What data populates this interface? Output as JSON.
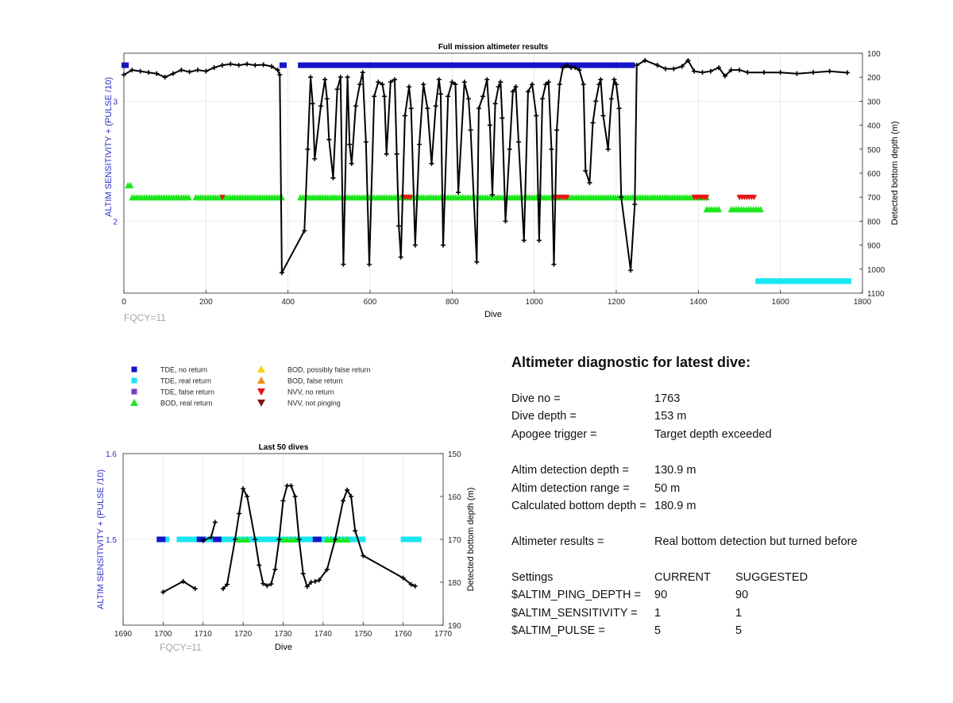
{
  "top_chart": {
    "title": "Full mission altimeter results",
    "xlabel": "Dive",
    "ylabel_left": "ALTIM SENSITIVITY + (PULSE /10)",
    "ylabel_right": "Detected bottom depth (m)",
    "fqcy": "FQCY=11",
    "x_ticks": [
      "0",
      "200",
      "400",
      "600",
      "800",
      "1000",
      "1200",
      "1400",
      "1600",
      "1800"
    ],
    "y_left_ticks": [
      "2",
      "3"
    ],
    "y_right_ticks": [
      "100",
      "200",
      "300",
      "400",
      "500",
      "600",
      "700",
      "800",
      "900",
      "1000",
      "1100"
    ]
  },
  "bottom_chart": {
    "title": "Last 50 dives",
    "xlabel": "Dive",
    "ylabel_left": "ALTIM SENSITIVITY + (PULSE /10)",
    "ylabel_right": "Detected bottom depth (m)",
    "fqcy": "FQCY=11",
    "x_ticks": [
      "1690",
      "1700",
      "1710",
      "1720",
      "1730",
      "1740",
      "1750",
      "1760",
      "1770"
    ],
    "y_left_ticks": [
      "1.6",
      "1.5"
    ],
    "y_right_ticks": [
      "150",
      "160",
      "170",
      "180",
      "190"
    ]
  },
  "legend": {
    "items": [
      {
        "label": "TDE, no return",
        "color": "#1414c8",
        "shape": "square"
      },
      {
        "label": "TDE, real return",
        "color": "#19e6f0",
        "shape": "square"
      },
      {
        "label": "TDE, false return",
        "color": "#7a3cc8",
        "shape": "square"
      },
      {
        "label": "BOD, real return",
        "color": "#1ee61e",
        "shape": "triangle-up"
      },
      {
        "label": "BOD, possibly false return",
        "color": "#f5d20a",
        "shape": "triangle-up"
      },
      {
        "label": "BOD, false return",
        "color": "#f08c14",
        "shape": "triangle-up"
      },
      {
        "label": "NVV, no return",
        "color": "#e61414",
        "shape": "triangle-down"
      },
      {
        "label": "NVV, not pinging",
        "color": "#821414",
        "shape": "triangle-down"
      }
    ]
  },
  "diagnostic": {
    "title": "Altimeter diagnostic for latest dive:",
    "dive_no_label": "Dive no =",
    "dive_no": "1763",
    "dive_depth_label": "Dive depth =",
    "dive_depth": "153 m",
    "apogee_label": "Apogee trigger =",
    "apogee": "Target depth exceeded",
    "det_depth_label": "Altim detection depth =",
    "det_depth": "130.9 m",
    "det_range_label": "Altim detection range =",
    "det_range": "50 m",
    "calc_depth_label": "Calculated bottom depth =",
    "calc_depth": "180.9 m",
    "results_label": "Altimeter results =",
    "results": "Real bottom detection but turned before",
    "settings_label": "Settings",
    "current_label": "CURRENT",
    "suggested_label": "SUGGESTED",
    "settings": [
      {
        "name": "$ALTIM_PING_DEPTH =",
        "current": "90",
        "suggested": "90"
      },
      {
        "name": "$ALTIM_SENSITIVITY =",
        "current": "1",
        "suggested": "1"
      },
      {
        "name": "$ALTIM_PULSE =",
        "current": "5",
        "suggested": "5"
      }
    ]
  },
  "chart_data": [
    {
      "type": "line",
      "title": "Full mission altimeter results",
      "xlabel": "Dive",
      "ylabel": "ALTIM SENSITIVITY + (PULSE /10)",
      "y2label": "Detected bottom depth (m)",
      "xlim": [
        0,
        1800
      ],
      "ylim_left": [
        1.4,
        3.4
      ],
      "ylim_right": [
        1100,
        100
      ],
      "grid": true,
      "bottom_depth_series": {
        "name": "Detected bottom depth (m)",
        "color": "#000000",
        "points": [
          [
            0,
            190
          ],
          [
            20,
            170
          ],
          [
            40,
            175
          ],
          [
            60,
            180
          ],
          [
            80,
            185
          ],
          [
            100,
            200
          ],
          [
            120,
            185
          ],
          [
            140,
            170
          ],
          [
            160,
            178
          ],
          [
            180,
            170
          ],
          [
            200,
            175
          ],
          [
            220,
            160
          ],
          [
            240,
            150
          ],
          [
            260,
            145
          ],
          [
            280,
            150
          ],
          [
            300,
            145
          ],
          [
            320,
            150
          ],
          [
            340,
            148
          ],
          [
            360,
            155
          ],
          [
            375,
            170
          ],
          [
            380,
            190
          ],
          [
            385,
            1015
          ],
          [
            440,
            840
          ],
          [
            448,
            500
          ],
          [
            455,
            200
          ],
          [
            460,
            310
          ],
          [
            465,
            540
          ],
          [
            480,
            320
          ],
          [
            490,
            210
          ],
          [
            495,
            290
          ],
          [
            500,
            460
          ],
          [
            510,
            620
          ],
          [
            520,
            250
          ],
          [
            528,
            200
          ],
          [
            535,
            980
          ],
          [
            545,
            200
          ],
          [
            550,
            480
          ],
          [
            555,
            560
          ],
          [
            565,
            320
          ],
          [
            575,
            230
          ],
          [
            582,
            180
          ],
          [
            590,
            470
          ],
          [
            598,
            980
          ],
          [
            610,
            280
          ],
          [
            620,
            220
          ],
          [
            630,
            230
          ],
          [
            635,
            280
          ],
          [
            640,
            520
          ],
          [
            650,
            220
          ],
          [
            660,
            210
          ],
          [
            665,
            520
          ],
          [
            670,
            820
          ],
          [
            675,
            950
          ],
          [
            685,
            360
          ],
          [
            695,
            240
          ],
          [
            700,
            330
          ],
          [
            710,
            900
          ],
          [
            720,
            480
          ],
          [
            730,
            230
          ],
          [
            740,
            330
          ],
          [
            750,
            560
          ],
          [
            760,
            320
          ],
          [
            768,
            210
          ],
          [
            772,
            270
          ],
          [
            778,
            900
          ],
          [
            790,
            280
          ],
          [
            800,
            220
          ],
          [
            808,
            230
          ],
          [
            815,
            680
          ],
          [
            830,
            220
          ],
          [
            840,
            290
          ],
          [
            845,
            420
          ],
          [
            860,
            970
          ],
          [
            865,
            330
          ],
          [
            875,
            280
          ],
          [
            885,
            210
          ],
          [
            892,
            400
          ],
          [
            898,
            690
          ],
          [
            905,
            310
          ],
          [
            913,
            240
          ],
          [
            918,
            220
          ],
          [
            922,
            370
          ],
          [
            930,
            800
          ],
          [
            940,
            500
          ],
          [
            948,
            260
          ],
          [
            955,
            240
          ],
          [
            962,
            470
          ],
          [
            975,
            880
          ],
          [
            985,
            260
          ],
          [
            995,
            230
          ],
          [
            1005,
            360
          ],
          [
            1012,
            880
          ],
          [
            1020,
            290
          ],
          [
            1028,
            230
          ],
          [
            1035,
            220
          ],
          [
            1042,
            500
          ],
          [
            1048,
            980
          ],
          [
            1055,
            420
          ],
          [
            1062,
            230
          ],
          [
            1070,
            160
          ],
          [
            1080,
            150
          ],
          [
            1090,
            160
          ],
          [
            1100,
            160
          ],
          [
            1110,
            170
          ],
          [
            1120,
            230
          ],
          [
            1125,
            590
          ],
          [
            1135,
            640
          ],
          [
            1143,
            390
          ],
          [
            1150,
            300
          ],
          [
            1158,
            230
          ],
          [
            1162,
            210
          ],
          [
            1168,
            360
          ],
          [
            1180,
            500
          ],
          [
            1188,
            290
          ],
          [
            1195,
            210
          ],
          [
            1200,
            230
          ],
          [
            1207,
            330
          ],
          [
            1212,
            700
          ],
          [
            1235,
            1005
          ],
          [
            1245,
            730
          ],
          [
            1250,
            150
          ],
          [
            1270,
            130
          ],
          [
            1300,
            150
          ],
          [
            1320,
            165
          ],
          [
            1340,
            165
          ],
          [
            1360,
            155
          ],
          [
            1375,
            130
          ],
          [
            1390,
            175
          ],
          [
            1410,
            180
          ],
          [
            1430,
            175
          ],
          [
            1450,
            160
          ],
          [
            1465,
            195
          ],
          [
            1480,
            170
          ],
          [
            1500,
            170
          ],
          [
            1520,
            180
          ],
          [
            1560,
            180
          ],
          [
            1600,
            180
          ],
          [
            1640,
            185
          ],
          [
            1680,
            180
          ],
          [
            1720,
            175
          ],
          [
            1763,
            181
          ]
        ]
      },
      "altim_setting_markers": [
        {
          "series": "TDE, no return",
          "x_ranges": [
            [
              0,
              10
            ],
            [
              385,
              392
            ],
            [
              430,
              1240
            ]
          ],
          "y": 3.3
        },
        {
          "series": "BOD, real return",
          "x_ranges": [
            [
              10,
              20
            ]
          ],
          "y": 2.3
        },
        {
          "series": "BOD, real return",
          "x_ranges": [
            [
              20,
              160
            ],
            [
              175,
              385
            ],
            [
              430,
              1420
            ]
          ],
          "y": 2.2
        },
        {
          "series": "BOD, real return",
          "x_ranges": [
            [
              1420,
              1455
            ],
            [
              1480,
              1555
            ]
          ],
          "y": 2.1
        },
        {
          "series": "TDE, real return",
          "x_ranges": [
            [
              1545,
              1768
            ]
          ],
          "y": 1.5
        },
        {
          "series": "NVV, no return",
          "x_ranges": [
            [
              240,
              245
            ],
            [
              680,
              700
            ],
            [
              1050,
              1085
            ],
            [
              1390,
              1420
            ],
            [
              1500,
              1540
            ]
          ],
          "y": 2.2
        }
      ]
    },
    {
      "type": "line",
      "title": "Last 50 dives",
      "xlabel": "Dive",
      "ylabel": "ALTIM SENSITIVITY + (PULSE /10)",
      "y2label": "Detected bottom depth (m)",
      "xlim": [
        1690,
        1770
      ],
      "ylim_left": [
        1.4,
        1.6
      ],
      "ylim_right": [
        190,
        150
      ],
      "grid": true,
      "bottom_depth_series": {
        "name": "Detected bottom depth (m)",
        "color": "#000000",
        "segments": [
          [
            [
              1700,
              182.3
            ],
            [
              1705,
              179.8
            ],
            [
              1708,
              181.5
            ]
          ],
          [
            [
              1710,
              170.3
            ],
            [
              1712,
              169.5
            ],
            [
              1713,
              166
            ]
          ],
          [
            [
              1715,
              181.5
            ],
            [
              1716,
              180.5
            ],
            [
              1718,
              170
            ],
            [
              1719,
              164
            ],
            [
              1720,
              158.2
            ],
            [
              1721,
              160
            ],
            [
              1723,
              170
            ],
            [
              1724,
              176
            ],
            [
              1725,
              180.3
            ],
            [
              1726,
              180.8
            ],
            [
              1727,
              180.4
            ],
            [
              1728,
              177
            ],
            [
              1729,
              170
            ],
            [
              1730,
              161
            ],
            [
              1731,
              157.5
            ],
            [
              1732,
              157.5
            ],
            [
              1733,
              160
            ],
            [
              1734,
              170
            ],
            [
              1735,
              178
            ],
            [
              1736,
              181
            ],
            [
              1737,
              180
            ]
          ],
          [
            [
              1738,
              179.8
            ],
            [
              1739,
              179.5
            ],
            [
              1741,
              177
            ],
            [
              1743,
              170
            ],
            [
              1745,
              161
            ],
            [
              1746,
              158.5
            ],
            [
              1747,
              160
            ],
            [
              1748,
              168
            ],
            [
              1750,
              173.8
            ],
            [
              1760,
              179
            ],
            [
              1762,
              180.5
            ],
            [
              1763,
              180.9
            ]
          ]
        ]
      },
      "altim_setting_markers": [
        {
          "series": "TDE, real return",
          "x_ranges": [
            [
              1699,
              1701
            ],
            [
              1704,
              1750
            ],
            [
              1760,
              1764
            ]
          ],
          "y": 1.5
        },
        {
          "series": "TDE, no return",
          "x_ranges": [
            [
              1699,
              1700
            ],
            [
              1709,
              1710
            ],
            [
              1713,
              1714
            ],
            [
              1738,
              1739
            ]
          ],
          "y": 1.5
        },
        {
          "series": "BOD, real return",
          "x_ranges": [
            [
              1719,
              1721
            ],
            [
              1730,
              1733
            ],
            [
              1741,
              1746
            ]
          ],
          "y": 1.5
        }
      ]
    }
  ]
}
